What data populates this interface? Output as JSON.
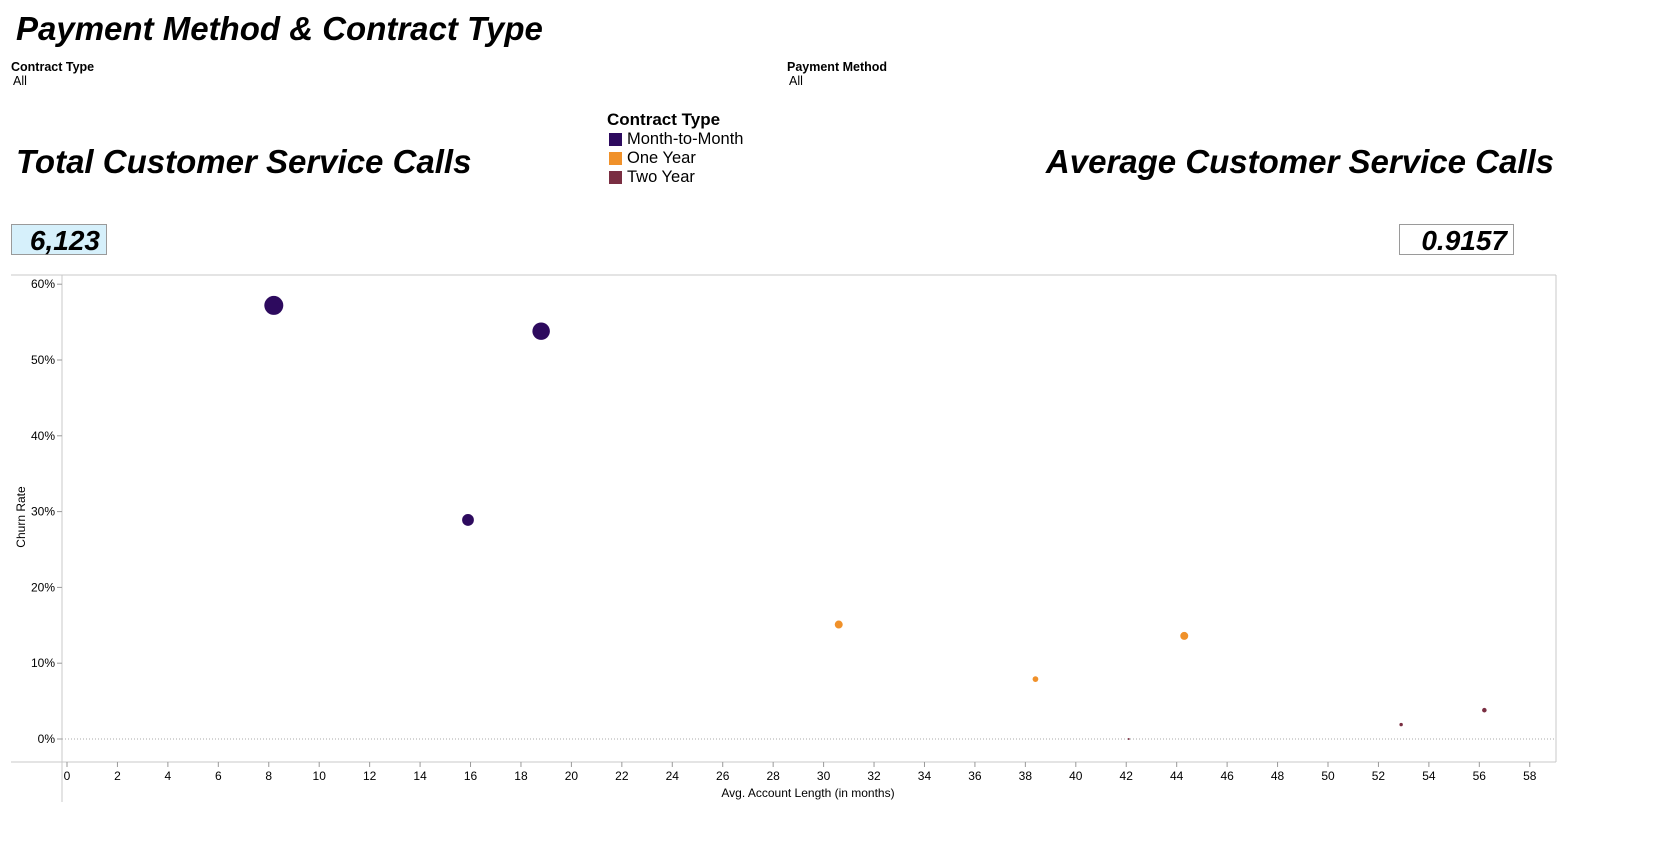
{
  "dashboard": {
    "title": "Payment Method & Contract Type",
    "filters": [
      {
        "label": "Contract Type",
        "value": "All"
      },
      {
        "label": "Payment Method",
        "value": "All"
      }
    ],
    "kpis": {
      "total_label": "Total Customer Service Calls",
      "total_value": "6,123",
      "total_bg": "#d6f0fb",
      "avg_label": "Average Customer Service Calls",
      "avg_value": "0.9157"
    }
  },
  "legend": {
    "title": "Contract Type",
    "items": [
      {
        "label": "Month-to-Month",
        "color": "#2d0a5e"
      },
      {
        "label": "One Year",
        "color": "#f0912a"
      },
      {
        "label": "Two Year",
        "color": "#7a2e42"
      }
    ]
  },
  "chart_data": {
    "type": "scatter",
    "xlabel": "Avg. Account Length (in months)",
    "ylabel": "Churn Rate",
    "xlim": [
      0,
      59
    ],
    "ylim": [
      -3,
      61
    ],
    "x_ticks": [
      0,
      2,
      4,
      6,
      8,
      10,
      12,
      14,
      16,
      18,
      20,
      22,
      24,
      26,
      28,
      30,
      32,
      34,
      36,
      38,
      40,
      42,
      44,
      46,
      48,
      50,
      52,
      54,
      56,
      58
    ],
    "y_ticks": [
      {
        "value": 0,
        "label": "0%"
      },
      {
        "value": 10,
        "label": "10%"
      },
      {
        "value": 20,
        "label": "20%"
      },
      {
        "value": 30,
        "label": "30%"
      },
      {
        "value": 40,
        "label": "40%"
      },
      {
        "value": 50,
        "label": "50%"
      },
      {
        "value": 60,
        "label": "60%"
      }
    ],
    "zero_line": true,
    "grid": false,
    "series": [
      {
        "name": "Month-to-Month",
        "color": "#2d0a5e",
        "points": [
          {
            "x": 8.2,
            "y": 57.2,
            "size": 1.0
          },
          {
            "x": 18.8,
            "y": 53.8,
            "size": 0.92
          },
          {
            "x": 15.9,
            "y": 28.9,
            "size": 0.62
          }
        ]
      },
      {
        "name": "One Year",
        "color": "#f0912a",
        "points": [
          {
            "x": 30.6,
            "y": 15.1,
            "size": 0.42
          },
          {
            "x": 44.3,
            "y": 13.6,
            "size": 0.42
          },
          {
            "x": 38.4,
            "y": 7.9,
            "size": 0.3
          }
        ]
      },
      {
        "name": "Two Year",
        "color": "#7a2e42",
        "points": [
          {
            "x": 52.9,
            "y": 1.9,
            "size": 0.18
          },
          {
            "x": 56.2,
            "y": 3.8,
            "size": 0.24
          },
          {
            "x": 42.1,
            "y": 0.0,
            "size": 0.08
          }
        ]
      }
    ]
  }
}
